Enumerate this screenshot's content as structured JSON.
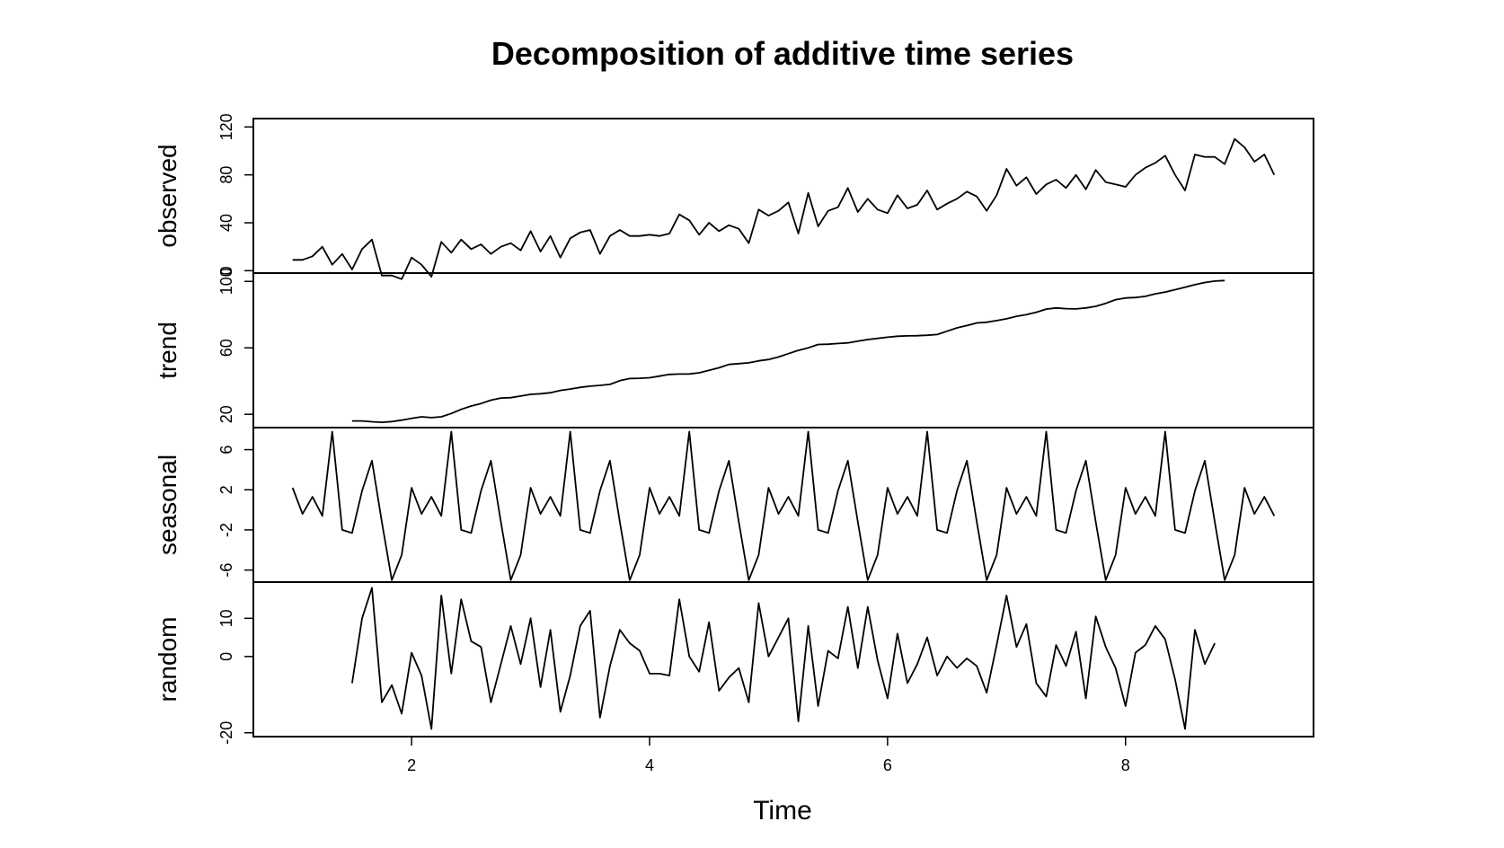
{
  "chart_data": {
    "type": "line",
    "title": "Decomposition of additive time series",
    "xlabel": "Time",
    "xlim": [
      0.67,
      9.58
    ],
    "xticks": [
      2,
      4,
      6,
      8
    ],
    "frequency": 12,
    "panels": [
      {
        "name": "observed",
        "start": 1,
        "ylim": [
          -2,
          127
        ],
        "yticks": [
          0,
          40,
          80,
          120
        ],
        "values": [
          9,
          9,
          12,
          20,
          5,
          14,
          1,
          18,
          26,
          -4,
          -4,
          -7,
          11,
          5,
          -5,
          24,
          15,
          26,
          18,
          22,
          14,
          20,
          23,
          17,
          33,
          16,
          29,
          11,
          27,
          32,
          34,
          14,
          29,
          34,
          29,
          29,
          30,
          29,
          31,
          47,
          42,
          30,
          40,
          33,
          38,
          35,
          23,
          51,
          46,
          50,
          57,
          31,
          65,
          37,
          50,
          53,
          69,
          49,
          60,
          51,
          48,
          63,
          52,
          55,
          67,
          51,
          56,
          60,
          66,
          62,
          50,
          63,
          85,
          71,
          78,
          64,
          72,
          76,
          69,
          80,
          68,
          84,
          74,
          72,
          70,
          80,
          86,
          90,
          96,
          80,
          67,
          97,
          95,
          95,
          89,
          110,
          103,
          91,
          97,
          80
        ]
      },
      {
        "name": "trend",
        "start": 1.5,
        "ylim": [
          12,
          105
        ],
        "yticks": [
          20,
          60,
          100
        ],
        "values": [
          16,
          16,
          15.5,
          15.2,
          15.6,
          16.5,
          17.5,
          18.5,
          18,
          18.5,
          20.5,
          23,
          25,
          26.5,
          28.5,
          29.8,
          30,
          31,
          32,
          32.4,
          33,
          34.4,
          35.2,
          36.2,
          36.9,
          37.4,
          38,
          40.2,
          41.5,
          41.7,
          42,
          43,
          44,
          44.2,
          44.3,
          45,
          46.5,
          48,
          50,
          50.5,
          51,
          52.2,
          53,
          54.5,
          56.5,
          58.5,
          60,
          62,
          62.2,
          62.6,
          63,
          64,
          65,
          65.7,
          66.4,
          67,
          67.2,
          67.3,
          67.6,
          68,
          70,
          72,
          73.4,
          75,
          75.4,
          76.4,
          77.5,
          79,
          80,
          81.4,
          83.3,
          84,
          83.6,
          83.4,
          84,
          85,
          86.8,
          89,
          90,
          90.3,
          91,
          92.5,
          93.6,
          95,
          96.5,
          98,
          99.3,
          100.2,
          100.5
        ]
      },
      {
        "name": "seasonal",
        "start": 1,
        "ylim": [
          -7.2,
          8.2
        ],
        "yticks": [
          -6,
          -2,
          2,
          6
        ],
        "values": [
          2.2,
          -0.4,
          1.3,
          -0.6,
          7.8,
          -2.0,
          -2.3,
          1.9,
          4.9,
          -1.2,
          -7.0,
          -4.5
        ]
      },
      {
        "name": "random",
        "start": 1.5,
        "ylim": [
          -21,
          19.5
        ],
        "yticks": [
          -20,
          0,
          10
        ],
        "values": [
          -7,
          10,
          18,
          -12,
          -7.5,
          -15,
          1,
          -5,
          -19,
          16,
          -4.5,
          15,
          4,
          2.5,
          -12,
          -2,
          8,
          -2,
          10,
          -8,
          7,
          -14.5,
          -5,
          8,
          12,
          -16,
          -2.5,
          7,
          3.5,
          1.5,
          -4.5,
          -4.5,
          -5,
          15,
          0,
          -4,
          9,
          -9,
          -5.5,
          -3,
          -12,
          14,
          0,
          5,
          10,
          -17,
          8,
          -13,
          1.5,
          -0.5,
          13,
          -3,
          13,
          -1,
          -11,
          6,
          -7,
          -2,
          5,
          -5,
          0,
          -3,
          -0.5,
          -2.5,
          -9.5,
          3,
          16,
          2.5,
          8.5,
          -7,
          -10.5,
          3,
          -2.5,
          6.5,
          -11,
          10.5,
          2.5,
          -3,
          -13,
          1,
          3,
          8,
          4.5,
          -6,
          -19,
          7,
          -2,
          3.5
        ]
      }
    ]
  }
}
